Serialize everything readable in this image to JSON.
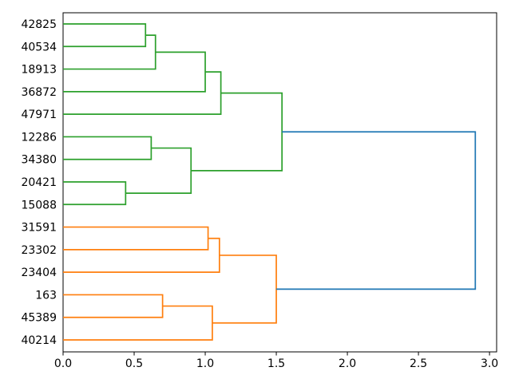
{
  "figure": {
    "background": "#ffffff",
    "title": ""
  },
  "chart_data": {
    "type": "dendrogram",
    "orientation": "right",
    "title": "",
    "xlabel": "",
    "ylabel": "",
    "grid": false,
    "legend": null,
    "leaf_labels": [
      "42825",
      "40534",
      "18913",
      "36872",
      "47971",
      "12286",
      "34380",
      "20421",
      "15088",
      "31591",
      "23302",
      "23404",
      "163",
      "45389",
      "40214"
    ],
    "x_ticks": [
      {
        "value": 0.0,
        "label": "0.0"
      },
      {
        "value": 0.5,
        "label": "0.5"
      },
      {
        "value": 1.0,
        "label": "1.0"
      },
      {
        "value": 1.5,
        "label": "1.5"
      },
      {
        "value": 2.0,
        "label": "2.0"
      },
      {
        "value": 2.5,
        "label": "2.5"
      },
      {
        "value": 3.0,
        "label": "3.0"
      }
    ],
    "xlim": [
      0,
      3.05
    ],
    "palette": {
      "green": "#2ca02c",
      "orange": "#ff7f0e",
      "blue": "#1f77b4",
      "spine": "#000000"
    },
    "links": [
      {
        "id": "n1",
        "a": "42825",
        "b": "40534",
        "dist": 0.58,
        "color": "green"
      },
      {
        "id": "n2",
        "a": "n1",
        "b": "18913",
        "dist": 0.65,
        "color": "green"
      },
      {
        "id": "n3",
        "a": "n2",
        "b": "36872",
        "dist": 1.0,
        "color": "green"
      },
      {
        "id": "n4",
        "a": "n3",
        "b": "47971",
        "dist": 1.11,
        "color": "green"
      },
      {
        "id": "n5",
        "a": "12286",
        "b": "34380",
        "dist": 0.62,
        "color": "green"
      },
      {
        "id": "n6",
        "a": "20421",
        "b": "15088",
        "dist": 0.44,
        "color": "green"
      },
      {
        "id": "n7",
        "a": "n5",
        "b": "n6",
        "dist": 0.9,
        "color": "green"
      },
      {
        "id": "n8",
        "a": "n4",
        "b": "n7",
        "dist": 1.54,
        "color": "green"
      },
      {
        "id": "n9",
        "a": "31591",
        "b": "23302",
        "dist": 1.02,
        "color": "orange"
      },
      {
        "id": "n10",
        "a": "n9",
        "b": "23404",
        "dist": 1.1,
        "color": "orange"
      },
      {
        "id": "n11",
        "a": "163",
        "b": "45389",
        "dist": 0.7,
        "color": "orange"
      },
      {
        "id": "n12",
        "a": "n11",
        "b": "40214",
        "dist": 1.05,
        "color": "orange"
      },
      {
        "id": "n13",
        "a": "n10",
        "b": "n12",
        "dist": 1.5,
        "color": "orange"
      },
      {
        "id": "n14",
        "a": "n8",
        "b": "n13",
        "dist": 2.9,
        "color": "blue"
      }
    ]
  }
}
